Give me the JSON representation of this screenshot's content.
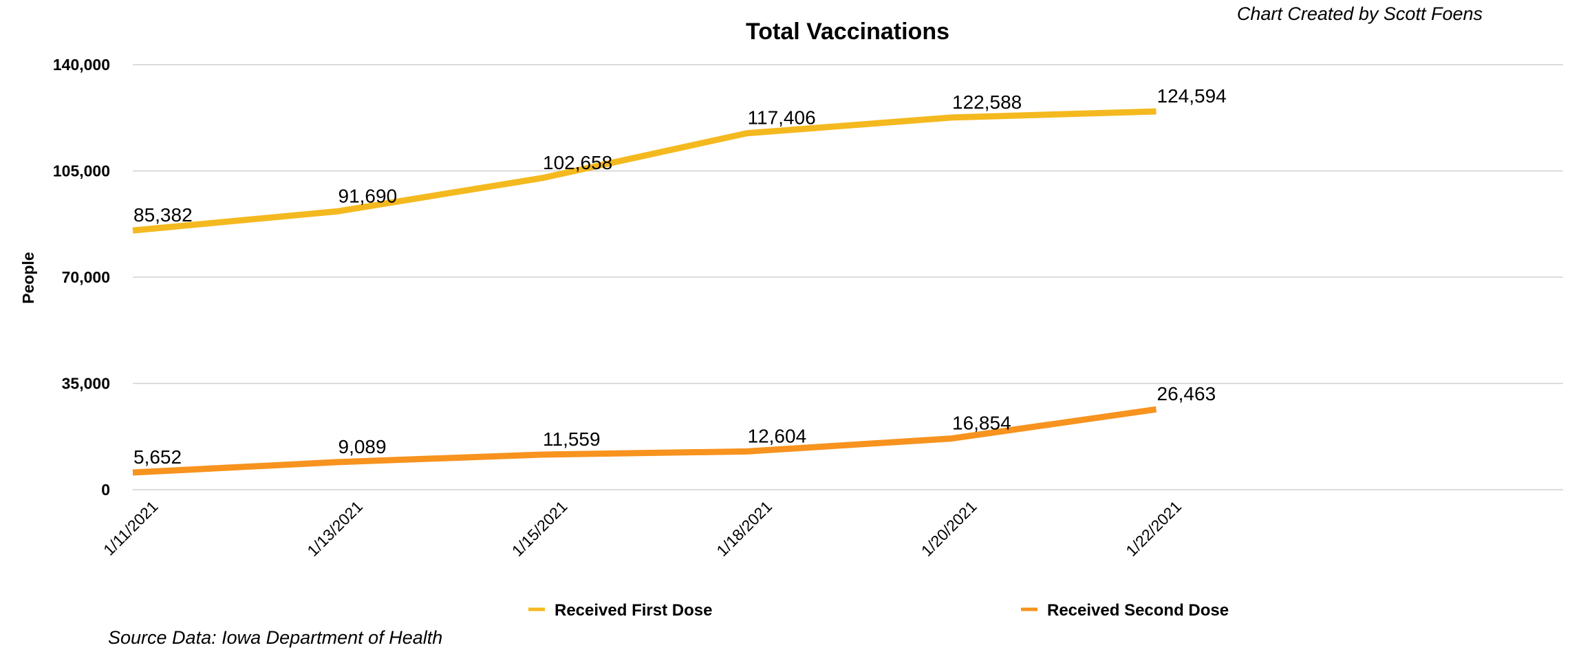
{
  "chart_data": {
    "type": "line",
    "title": "Total Vaccinations",
    "credit": "Chart Created by Scott Foens",
    "source": "Source Data:  Iowa Department of Health",
    "xlabel": "",
    "ylabel": "People",
    "ylim": [
      0,
      140000
    ],
    "yticks": [
      0,
      35000,
      70000,
      105000,
      140000
    ],
    "ytick_labels": [
      "0",
      "35,000",
      "70,000",
      "105,000",
      "140,000"
    ],
    "categories": [
      "1/11/2021",
      "1/13/2021",
      "1/15/2021",
      "1/18/2021",
      "1/20/2021",
      "1/22/2021"
    ],
    "series": [
      {
        "name": "Received First Dose",
        "color": "#F4B91F",
        "values": [
          85382,
          91690,
          102658,
          117406,
          122588,
          124594
        ],
        "labels": [
          "85,382",
          "91,690",
          "102,658",
          "117,406",
          "122,588",
          "124,594"
        ]
      },
      {
        "name": "Received Second Dose",
        "color": "#F7931E",
        "values": [
          5652,
          9089,
          11559,
          12604,
          16854,
          26463
        ],
        "labels": [
          "5,652",
          "9,089",
          "11,559",
          "12,604",
          "16,854",
          "26,463"
        ]
      }
    ],
    "grid": true,
    "legend_position": "bottom"
  }
}
